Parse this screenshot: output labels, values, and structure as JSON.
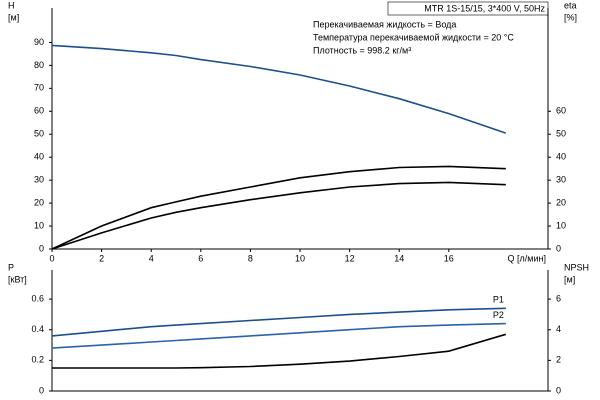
{
  "header": {
    "model": "MTR 1S-15/15, 3*400 V, 50Hz",
    "lines": [
      "Перекачиваемая жидкость = Вода",
      "Температура перекачиваемой жидкости = 20 °C",
      "Плотность = 998.2 кг/м³"
    ]
  },
  "chart_data": [
    {
      "type": "line",
      "ylabel": [
        "H",
        "[м]"
      ],
      "y2label": [
        "eta",
        "[%]"
      ],
      "xlabel": "Q [л/мин]",
      "x": [
        0,
        2,
        4,
        5,
        6,
        8,
        10,
        12,
        14,
        16,
        18.3
      ],
      "xlim": [
        0,
        20
      ],
      "xticks": [
        0,
        2,
        4,
        6,
        8,
        10,
        12,
        14,
        16
      ],
      "ylim": [
        0,
        105
      ],
      "yticks": [
        0,
        10,
        20,
        30,
        40,
        50,
        60,
        70,
        80,
        90
      ],
      "y2lim": [
        0,
        105
      ],
      "y2ticks": [
        0,
        10,
        20,
        30,
        40,
        50,
        60
      ],
      "series": [
        {
          "color": "#1d4f8c",
          "values": [
            88.7,
            87.3,
            85.5,
            84.3,
            82.5,
            79.5,
            75.8,
            71,
            65.5,
            59,
            50.5
          ]
        },
        {
          "color": "#000000",
          "axis": "y2",
          "values": [
            0,
            10,
            18,
            20.5,
            23,
            27,
            31,
            33.7,
            35.5,
            36,
            35
          ]
        },
        {
          "color": "#000000",
          "axis": "y2",
          "values": [
            0,
            7,
            13.5,
            16,
            18,
            21.5,
            24.5,
            27,
            28.5,
            29,
            28
          ]
        }
      ]
    },
    {
      "type": "line",
      "ylabel": [
        "P",
        "[кВт]"
      ],
      "y2label": [
        "NPSH",
        "[м]"
      ],
      "x": [
        0,
        2,
        4,
        5,
        6,
        8,
        10,
        12,
        14,
        16,
        18.3
      ],
      "xlim": [
        0,
        20
      ],
      "ylim": [
        0,
        0.79
      ],
      "yticks": [
        0,
        0.2,
        0.4,
        0.6
      ],
      "y2lim": [
        0,
        7.9
      ],
      "y2ticks": [
        0,
        2,
        4,
        6
      ],
      "series": [
        {
          "name": "P1",
          "color": "#1d4f8c",
          "values": [
            0.36,
            0.39,
            0.42,
            0.43,
            0.44,
            0.46,
            0.48,
            0.5,
            0.515,
            0.53,
            0.54
          ]
        },
        {
          "name": "P2",
          "color": "#2d62a8",
          "values": [
            0.28,
            0.3,
            0.32,
            0.33,
            0.34,
            0.36,
            0.38,
            0.4,
            0.42,
            0.43,
            0.44
          ]
        },
        {
          "color": "#000000",
          "axis": "y2",
          "values": [
            1.5,
            1.5,
            1.5,
            1.5,
            1.52,
            1.6,
            1.75,
            1.95,
            2.25,
            2.6,
            3.7
          ]
        }
      ]
    }
  ]
}
